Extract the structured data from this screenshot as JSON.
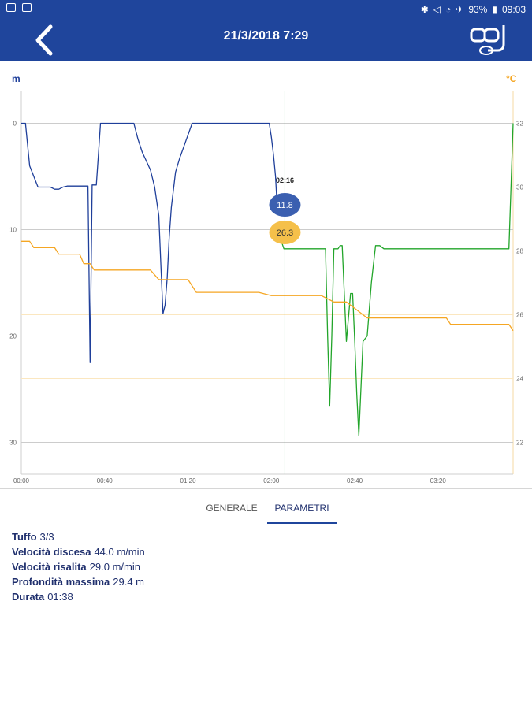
{
  "status_bar": {
    "battery": "93%",
    "time": "09:03"
  },
  "header": {
    "title": "21/3/2018 7:29"
  },
  "tabs": [
    {
      "label": "GENERALE",
      "active": false
    },
    {
      "label": "PARAMETRI",
      "active": true
    }
  ],
  "params": [
    {
      "label": "Tuffo",
      "value": "3/3"
    },
    {
      "label": "Velocità discesa",
      "value": "44.0 m/min"
    },
    {
      "label": "Velocità risalita",
      "value": "29.0 m/min"
    },
    {
      "label": "Profondità massima",
      "value": "29.4 m"
    },
    {
      "label": "Durata",
      "value": "01:38"
    }
  ],
  "colors": {
    "primary": "#1f459c",
    "depth_past": "#1f3f9a",
    "depth_current": "#22a52a",
    "temperature": "#f5a623"
  },
  "chart_data": {
    "type": "line",
    "left_axis_unit": "m",
    "right_axis_unit": "°C",
    "x_ticks": [
      "00:00",
      "00:40",
      "01:20",
      "02:00",
      "02:40",
      "03:20"
    ],
    "y_left_ticks": [
      0,
      10,
      20,
      30
    ],
    "y_right_ticks": [
      32,
      30,
      28,
      26,
      24,
      22
    ],
    "xlim": [
      0,
      236
    ],
    "ylim_left": [
      -3,
      33
    ],
    "ylim_right": [
      33,
      21
    ],
    "cursor": {
      "label": "02:16",
      "depth": "11.8",
      "temperature": "26.3"
    },
    "series": [
      {
        "key": "depth_past",
        "x": [
          0,
          2,
          4,
          6,
          8,
          10,
          12,
          14,
          16,
          18,
          20,
          22,
          24,
          26,
          28,
          30,
          32,
          33,
          34,
          35,
          36,
          37,
          38,
          40,
          44,
          50,
          54,
          56,
          58,
          62,
          64,
          66,
          67,
          68,
          69,
          70,
          71,
          72,
          74,
          76,
          78,
          82,
          84,
          88,
          94,
          100,
          106,
          110,
          114,
          116,
          119,
          120,
          121,
          122,
          123
        ],
        "y": [
          0,
          0,
          4,
          5,
          6,
          6,
          6,
          6,
          6.2,
          6.2,
          6,
          5.9,
          5.9,
          5.9,
          5.9,
          5.9,
          5.9,
          22.5,
          5.8,
          5.8,
          5.8,
          3,
          0,
          0,
          0,
          0,
          0,
          1.5,
          2.7,
          4.4,
          6,
          8.7,
          13.5,
          17.9,
          17.1,
          14.6,
          10.7,
          7.9,
          4.6,
          3.3,
          2.2,
          0,
          0,
          0,
          0,
          0,
          0,
          0,
          0,
          0,
          0,
          1.3,
          2.9,
          5,
          8.6
        ]
      },
      {
        "key": "depth_current",
        "x": [
          124,
          125,
          126,
          128,
          132,
          136,
          140,
          144,
          146,
          147,
          148,
          149,
          150,
          152,
          153,
          154,
          156,
          158,
          159,
          160,
          161,
          162,
          164,
          166,
          168,
          170,
          172,
          174,
          176,
          180,
          200,
          220,
          226,
          232,
          234,
          236
        ],
        "y": [
          10.3,
          11.2,
          11.8,
          11.8,
          11.8,
          11.8,
          11.8,
          11.8,
          11.8,
          20,
          26.6,
          20,
          11.8,
          11.8,
          11.5,
          11.5,
          20.5,
          16,
          16,
          20.5,
          25.5,
          29.4,
          20.5,
          20,
          15,
          11.5,
          11.5,
          11.8,
          11.8,
          11.8,
          11.8,
          11.8,
          11.8,
          11.8,
          11.8,
          0
        ]
      },
      {
        "key": "temperature",
        "x": [
          0,
          4,
          6,
          10,
          16,
          18,
          20,
          28,
          30,
          33,
          35,
          40,
          44,
          50,
          62,
          66,
          68,
          70,
          74,
          76,
          80,
          84,
          86,
          88,
          90,
          94,
          98,
          104,
          110,
          114,
          120,
          126,
          130,
          136,
          144,
          150,
          156,
          160,
          166,
          172,
          176,
          180,
          190,
          200,
          204,
          206,
          208,
          212,
          216,
          220,
          222,
          226,
          230,
          234,
          235,
          236
        ],
        "y": [
          28.3,
          28.3,
          28.1,
          28.1,
          28.1,
          27.9,
          27.9,
          27.9,
          27.6,
          27.6,
          27.4,
          27.4,
          27.4,
          27.4,
          27.4,
          27.1,
          27.1,
          27.1,
          27.1,
          27.1,
          27.1,
          26.7,
          26.7,
          26.7,
          26.7,
          26.7,
          26.7,
          26.7,
          26.7,
          26.7,
          26.6,
          26.6,
          26.6,
          26.6,
          26.6,
          26.4,
          26.4,
          26.2,
          25.9,
          25.9,
          25.9,
          25.9,
          25.9,
          25.9,
          25.9,
          25.7,
          25.7,
          25.7,
          25.7,
          25.7,
          25.7,
          25.7,
          25.7,
          25.7,
          25.6,
          25.5
        ]
      }
    ]
  }
}
